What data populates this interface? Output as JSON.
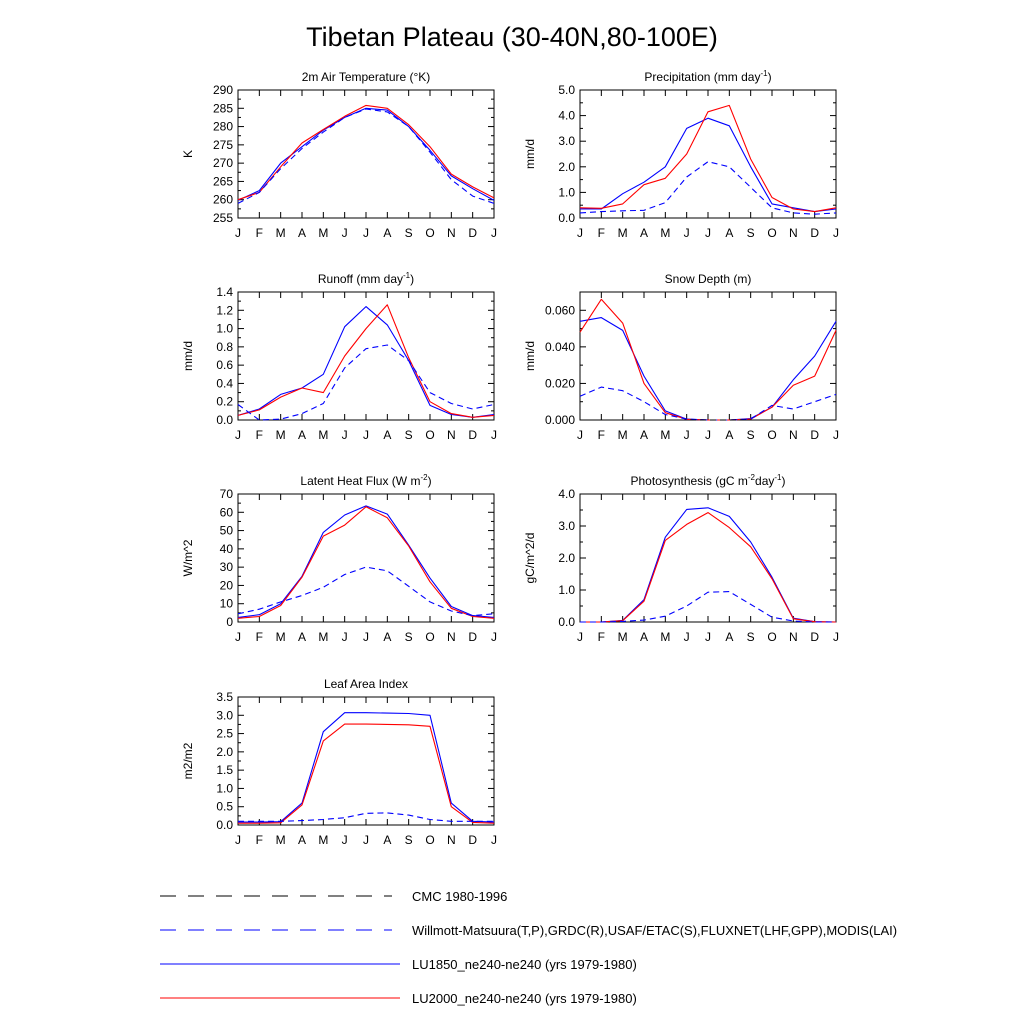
{
  "page_title": "Tibetan Plateau (30-40N,80-100E)",
  "months": [
    "J",
    "F",
    "M",
    "A",
    "M",
    "J",
    "J",
    "A",
    "S",
    "O",
    "N",
    "D",
    "J"
  ],
  "legend": [
    {
      "label": "CMC 1980-1996",
      "color": "#000000",
      "style": "longdash"
    },
    {
      "label": "Willmott-Matsuura(T,P),GRDC(R),USAF/ETAC(S),FLUXNET(LHF,GPP),MODIS(LAI)",
      "color": "#0000ff",
      "style": "longdash"
    },
    {
      "label": "LU1850_ne240-ne240 (yrs 1979-1980)",
      "color": "#0000ff",
      "style": "solid"
    },
    {
      "label": "LU2000_ne240-ne240 (yrs 1979-1980)",
      "color": "#ff0000",
      "style": "solid"
    }
  ],
  "chart_data": [
    {
      "type": "line",
      "title": "2m Air Temperature (°K)",
      "ylabel": "K",
      "ylim": [
        255,
        290
      ],
      "yticks": [
        "255",
        "260",
        "265",
        "270",
        "275",
        "280",
        "285",
        "290"
      ],
      "x": [
        "J",
        "F",
        "M",
        "A",
        "M",
        "J",
        "J",
        "A",
        "S",
        "O",
        "N",
        "D",
        "J"
      ],
      "series": [
        {
          "name": "LU1850_ne240-ne240 (yrs 1979-1980)",
          "color": "#0000ff",
          "dash": "solid",
          "values": [
            259.8,
            262.5,
            270.0,
            274.5,
            279.0,
            282.5,
            285.0,
            284.5,
            280.0,
            273.5,
            266.5,
            263.0,
            259.8
          ]
        },
        {
          "name": "LU2000_ne240-ne240 (yrs 1979-1980)",
          "color": "#ff0000",
          "dash": "solid",
          "values": [
            260.0,
            262.0,
            269.0,
            275.5,
            279.2,
            282.8,
            285.8,
            285.0,
            280.5,
            274.5,
            267.0,
            263.5,
            260.5
          ]
        },
        {
          "name": "Willmott-Matsuura(T,P),GRDC(R),USAF/ETAC(S),FLUXNET(LHF,GPP),MODIS(LAI)",
          "color": "#0000ff",
          "dash": "dash",
          "values": [
            259.0,
            262.0,
            268.5,
            274.0,
            278.5,
            282.5,
            284.8,
            284.0,
            280.0,
            273.0,
            265.5,
            261.0,
            259.0
          ]
        }
      ]
    },
    {
      "type": "line",
      "title": "Precipitation (mm day⁻¹)",
      "ylabel": "mm/d",
      "ylim": [
        0,
        5
      ],
      "yticks": [
        "0.0",
        "1.0",
        "2.0",
        "3.0",
        "4.0",
        "5.0"
      ],
      "x": [
        "J",
        "F",
        "M",
        "A",
        "M",
        "J",
        "J",
        "A",
        "S",
        "O",
        "N",
        "D",
        "J"
      ],
      "series": [
        {
          "name": "LU1850_ne240-ne240 (yrs 1979-1980)",
          "color": "#0000ff",
          "dash": "solid",
          "values": [
            0.35,
            0.35,
            0.95,
            1.4,
            2.0,
            3.5,
            3.9,
            3.6,
            2.0,
            0.55,
            0.4,
            0.25,
            0.35
          ]
        },
        {
          "name": "LU2000_ne240-ne240 (yrs 1979-1980)",
          "color": "#ff0000",
          "dash": "solid",
          "values": [
            0.4,
            0.38,
            0.55,
            1.3,
            1.55,
            2.5,
            4.15,
            4.4,
            2.3,
            0.8,
            0.35,
            0.25,
            0.4
          ]
        },
        {
          "name": "Willmott-Matsuura(T,P),GRDC(R),USAF/ETAC(S),FLUXNET(LHF,GPP),MODIS(LAI)",
          "color": "#0000ff",
          "dash": "dash",
          "values": [
            0.2,
            0.25,
            0.28,
            0.3,
            0.6,
            1.6,
            2.2,
            2.0,
            1.2,
            0.4,
            0.2,
            0.15,
            0.2
          ]
        }
      ]
    },
    {
      "type": "line",
      "title": "Runoff (mm day⁻¹)",
      "ylabel": "mm/d",
      "ylim": [
        0,
        1.4
      ],
      "yticks": [
        "0.0",
        "0.2",
        "0.4",
        "0.6",
        "0.8",
        "1.0",
        "1.2",
        "1.4"
      ],
      "x": [
        "J",
        "F",
        "M",
        "A",
        "M",
        "J",
        "J",
        "A",
        "S",
        "O",
        "N",
        "D",
        "J"
      ],
      "series": [
        {
          "name": "LU1850_ne240-ne240 (yrs 1979-1980)",
          "color": "#0000ff",
          "dash": "solid",
          "values": [
            0.05,
            0.12,
            0.28,
            0.35,
            0.5,
            1.02,
            1.24,
            1.04,
            0.65,
            0.16,
            0.06,
            0.03,
            0.06
          ]
        },
        {
          "name": "LU2000_ne240-ne240 (yrs 1979-1980)",
          "color": "#ff0000",
          "dash": "solid",
          "values": [
            0.05,
            0.11,
            0.25,
            0.35,
            0.3,
            0.7,
            1.0,
            1.26,
            0.68,
            0.2,
            0.07,
            0.03,
            0.05
          ]
        },
        {
          "name": "Willmott-Matsuura(T,P),GRDC(R),USAF/ETAC(S),FLUXNET(LHF,GPP),MODIS(LAI)",
          "color": "#0000ff",
          "dash": "dash",
          "values": [
            0.17,
            0.0,
            0.01,
            0.07,
            0.18,
            0.57,
            0.78,
            0.82,
            0.65,
            0.3,
            0.18,
            0.12,
            0.17
          ]
        }
      ]
    },
    {
      "type": "line",
      "title": "Snow Depth (m)",
      "ylabel": "mm/d",
      "ylim": [
        0,
        0.07
      ],
      "yticks": [
        "0.000",
        "0.020",
        "0.040",
        "0.060"
      ],
      "ytick_values": [
        0,
        0.02,
        0.04,
        0.06
      ],
      "x": [
        "J",
        "F",
        "M",
        "A",
        "M",
        "J",
        "J",
        "A",
        "S",
        "O",
        "N",
        "D",
        "J"
      ],
      "series": [
        {
          "name": "LU1850_ne240-ne240 (yrs 1979-1980)",
          "color": "#0000ff",
          "dash": "solid",
          "values": [
            0.054,
            0.056,
            0.049,
            0.024,
            0.005,
            0.0005,
            0.0,
            0.0,
            0.0008,
            0.007,
            0.022,
            0.035,
            0.054
          ]
        },
        {
          "name": "LU2000_ne240-ne240 (yrs 1979-1980)",
          "color": "#ff0000",
          "dash": "solid",
          "values": [
            0.048,
            0.066,
            0.053,
            0.02,
            0.004,
            0.0004,
            0.0,
            0.0,
            0.0005,
            0.007,
            0.019,
            0.024,
            0.049
          ]
        },
        {
          "name": "Willmott-Matsuura(T,P),GRDC(R),USAF/ETAC(S),FLUXNET(LHF,GPP),MODIS(LAI)",
          "color": "#0000ff",
          "dash": "dash",
          "values": [
            0.013,
            0.018,
            0.016,
            0.01,
            0.003,
            0.0005,
            0.0,
            0.0,
            0.0005,
            0.008,
            0.006,
            0.01,
            0.014
          ]
        },
        {
          "name": "CMC 1980-1996",
          "color": "#000000",
          "dash": "dash",
          "values": [
            0.0,
            0.0,
            0.0,
            0.0,
            0.0,
            0.0,
            0.0,
            0.0,
            0.0,
            0.0,
            0.0,
            0.0,
            0.0
          ]
        }
      ]
    },
    {
      "type": "line",
      "title": "Latent Heat Flux (W m⁻²)",
      "ylabel": "W/m^2",
      "ylim": [
        0,
        70
      ],
      "yticks": [
        "0",
        "10",
        "20",
        "30",
        "40",
        "50",
        "60",
        "70"
      ],
      "x": [
        "J",
        "F",
        "M",
        "A",
        "M",
        "J",
        "J",
        "A",
        "S",
        "O",
        "N",
        "D",
        "J"
      ],
      "series": [
        {
          "name": "LU1850_ne240-ne240 (yrs 1979-1980)",
          "color": "#0000ff",
          "dash": "solid",
          "values": [
            2.5,
            4.0,
            10.0,
            25.0,
            49.0,
            58.5,
            63.5,
            59.0,
            42.0,
            24.0,
            8.5,
            3.5,
            2.5
          ]
        },
        {
          "name": "LU2000_ne240-ne240 (yrs 1979-1980)",
          "color": "#ff0000",
          "dash": "solid",
          "values": [
            2.0,
            3.0,
            9.0,
            24.5,
            47.0,
            53.0,
            63.0,
            57.0,
            41.5,
            22.0,
            7.5,
            3.0,
            2.0
          ]
        },
        {
          "name": "Willmott-Matsuura(T,P),GRDC(R),USAF/ETAC(S),FLUXNET(LHF,GPP),MODIS(LAI)",
          "color": "#0000ff",
          "dash": "dash",
          "values": [
            4.5,
            7.0,
            11.0,
            14.5,
            19.0,
            26.0,
            30.0,
            28.0,
            19.5,
            11.0,
            6.0,
            3.5,
            4.5
          ]
        }
      ]
    },
    {
      "type": "line",
      "title": "Photosynthesis (gC m⁻²day⁻¹)",
      "ylabel": "gC/m^2/d",
      "ylim": [
        0,
        4
      ],
      "yticks": [
        "0.0",
        "1.0",
        "2.0",
        "3.0",
        "4.0"
      ],
      "x": [
        "J",
        "F",
        "M",
        "A",
        "M",
        "J",
        "J",
        "A",
        "S",
        "O",
        "N",
        "D",
        "J"
      ],
      "series": [
        {
          "name": "LU1850_ne240-ne240 (yrs 1979-1980)",
          "color": "#0000ff",
          "dash": "solid",
          "values": [
            0.0,
            0.0,
            0.05,
            0.7,
            2.65,
            3.52,
            3.57,
            3.3,
            2.5,
            1.4,
            0.12,
            0.01,
            0.0
          ]
        },
        {
          "name": "LU2000_ne240-ne240 (yrs 1979-1980)",
          "color": "#ff0000",
          "dash": "solid",
          "values": [
            0.0,
            0.0,
            0.04,
            0.65,
            2.55,
            3.05,
            3.42,
            2.95,
            2.35,
            1.35,
            0.1,
            0.01,
            0.0
          ]
        },
        {
          "name": "Willmott-Matsuura(T,P),GRDC(R),USAF/ETAC(S),FLUXNET(LHF,GPP),MODIS(LAI)",
          "color": "#0000ff",
          "dash": "dash",
          "values": [
            0.0,
            0.0,
            0.02,
            0.06,
            0.18,
            0.5,
            0.93,
            0.95,
            0.55,
            0.15,
            0.03,
            0.0,
            0.0
          ]
        }
      ]
    },
    {
      "type": "line",
      "title": "Leaf Area Index",
      "ylabel": "m2/m2",
      "ylim": [
        0,
        3.5
      ],
      "yticks": [
        "0.0",
        "0.5",
        "1.0",
        "1.5",
        "2.0",
        "2.5",
        "3.0",
        "3.5"
      ],
      "x": [
        "J",
        "F",
        "M",
        "A",
        "M",
        "J",
        "J",
        "A",
        "S",
        "O",
        "N",
        "D",
        "J"
      ],
      "series": [
        {
          "name": "LU1850_ne240-ne240 (yrs 1979-1980)",
          "color": "#0000ff",
          "dash": "solid",
          "values": [
            0.08,
            0.08,
            0.09,
            0.6,
            2.55,
            3.07,
            3.07,
            3.06,
            3.05,
            3.0,
            0.6,
            0.1,
            0.08
          ]
        },
        {
          "name": "LU2000_ne240-ne240 (yrs 1979-1980)",
          "color": "#ff0000",
          "dash": "solid",
          "values": [
            0.05,
            0.05,
            0.06,
            0.55,
            2.3,
            2.76,
            2.76,
            2.75,
            2.74,
            2.7,
            0.5,
            0.07,
            0.05
          ]
        },
        {
          "name": "Willmott-Matsuura(T,P),GRDC(R),USAF/ETAC(S),FLUXNET(LHF,GPP),MODIS(LAI)",
          "color": "#0000ff",
          "dash": "dash",
          "values": [
            0.1,
            0.1,
            0.1,
            0.12,
            0.15,
            0.2,
            0.32,
            0.33,
            0.27,
            0.15,
            0.1,
            0.1,
            0.1
          ]
        }
      ]
    }
  ]
}
